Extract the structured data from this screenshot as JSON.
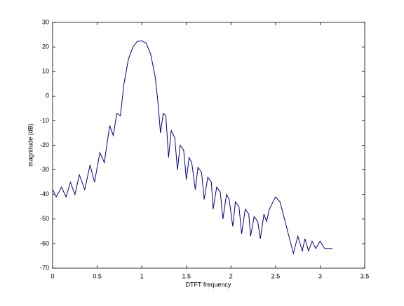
{
  "chart_data": {
    "type": "line",
    "xlabel": "DTFT frequency",
    "ylabel": "magnitude (dB)",
    "color": "#00008b",
    "x": [
      0,
      0.04,
      0.1,
      0.15,
      0.2,
      0.25,
      0.3,
      0.36,
      0.42,
      0.47,
      0.53,
      0.58,
      0.64,
      0.68,
      0.72,
      0.76,
      0.8,
      0.85,
      0.9,
      0.95,
      1.0,
      1.05,
      1.1,
      1.15,
      1.18,
      1.21,
      1.24,
      1.27,
      1.3,
      1.33,
      1.37,
      1.4,
      1.43,
      1.47,
      1.5,
      1.53,
      1.56,
      1.6,
      1.63,
      1.67,
      1.7,
      1.74,
      1.78,
      1.8,
      1.84,
      1.88,
      1.91,
      1.95,
      1.98,
      2.02,
      2.05,
      2.09,
      2.12,
      2.16,
      2.2,
      2.22,
      2.26,
      2.3,
      2.33,
      2.37,
      2.4,
      2.43,
      2.5,
      2.55,
      2.6,
      2.65,
      2.7,
      2.75,
      2.8,
      2.83,
      2.87,
      2.91,
      2.95,
      3.0,
      3.05,
      3.14
    ],
    "values": [
      -38,
      -41,
      -37,
      -41,
      -35,
      -40,
      -32,
      -38,
      -28,
      -35,
      -23,
      -27,
      -12,
      -16,
      -7,
      -8,
      5,
      15,
      20,
      22.3,
      22.5,
      21.5,
      17,
      8,
      -2,
      -15,
      -7,
      -8,
      -25,
      -14,
      -17,
      -30,
      -20,
      -22,
      -34,
      -25,
      -27,
      -38,
      -29,
      -31,
      -42,
      -33,
      -35,
      -46,
      -37,
      -39,
      -50,
      -40,
      -42,
      -53,
      -43,
      -45,
      -56,
      -46,
      -48,
      -57,
      -49,
      -51,
      -58,
      -48,
      -51,
      -46,
      -41,
      -43,
      -50,
      -57,
      -64,
      -57,
      -63,
      -58,
      -63,
      -59,
      -62,
      -59,
      -62,
      -62
    ],
    "xlim": [
      0,
      3.5
    ],
    "xticks": [
      0,
      0.5,
      1,
      1.5,
      2,
      2.5,
      3,
      3.5
    ],
    "ylim": [
      -70,
      30
    ],
    "yticks": [
      -70,
      -60,
      -50,
      -40,
      -30,
      -20,
      -10,
      0,
      10,
      20,
      30
    ]
  }
}
